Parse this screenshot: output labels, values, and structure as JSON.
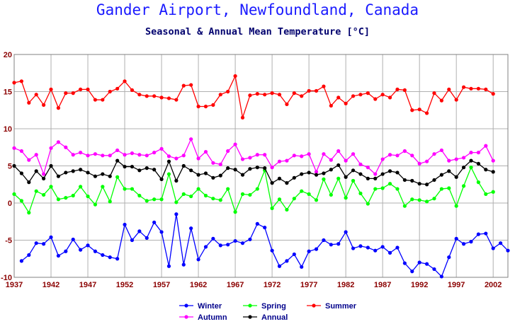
{
  "title": "Gander Airport, Newfoundland, Canada",
  "subtitle": "Seasonal & Annual Mean Temperature [°C]",
  "chart_data": {
    "type": "line",
    "title": "Gander Airport, Newfoundland, Canada",
    "subtitle": "Seasonal & Annual Mean Temperature [°C]",
    "xlabel": "",
    "ylabel": "",
    "xlim": [
      1937,
      2004
    ],
    "ylim": [
      -10,
      20
    ],
    "y_ticks": [
      -10,
      -5,
      0,
      5,
      10,
      15,
      20
    ],
    "x_ticks": [
      1937,
      1942,
      1947,
      1952,
      1957,
      1962,
      1967,
      1972,
      1977,
      1982,
      1987,
      1992,
      1997,
      2002
    ],
    "grid": true,
    "legend_position": "bottom-center",
    "x_start": 1937,
    "series": [
      {
        "name": "Winter",
        "color": "#0000ff",
        "start_year": 1938,
        "values": [
          -7.8,
          -7.0,
          -5.4,
          -5.5,
          -4.6,
          -7.1,
          -6.5,
          -4.9,
          -6.3,
          -5.7,
          -6.5,
          -7.0,
          -7.3,
          -7.5,
          -2.9,
          -5.0,
          -3.8,
          -4.7,
          -2.6,
          -3.9,
          -8.5,
          -1.5,
          -8.3,
          -3.4,
          -7.6,
          -5.9,
          -4.8,
          -5.7,
          -5.6,
          -5.1,
          -5.4,
          -4.9,
          -2.8,
          -3.3,
          -6.4,
          -8.5,
          -7.8,
          -6.9,
          -8.6,
          -6.5,
          -6.2,
          -5.0,
          -5.6,
          -5.5,
          -3.9,
          -6.1,
          -5.8,
          -6.0,
          -6.4,
          -5.9,
          -6.7,
          -6.0,
          -8.1,
          -9.2,
          -8.0,
          -8.2,
          -8.9,
          -9.9,
          -7.3,
          -4.8,
          -5.5,
          -5.2,
          -4.2,
          -4.1,
          -6.1,
          -5.4,
          -6.4
        ]
      },
      {
        "name": "Spring",
        "color": "#00ff00",
        "start_year": 1937,
        "values": [
          1.2,
          0.3,
          -1.3,
          1.6,
          1.1,
          2.2,
          0.5,
          0.7,
          1.0,
          2.2,
          0.9,
          -0.2,
          2.2,
          0.2,
          3.5,
          1.9,
          1.9,
          1.0,
          0.3,
          0.5,
          0.5,
          3.9,
          0.1,
          1.2,
          0.9,
          1.9,
          1.0,
          0.6,
          0.4,
          1.9,
          -1.2,
          1.2,
          1.1,
          1.9,
          4.4,
          -0.7,
          0.5,
          -0.9,
          0.6,
          1.6,
          1.2,
          0.4,
          3.2,
          1.1,
          3.3,
          0.7,
          3.0,
          1.3,
          -0.1,
          1.9,
          2.0,
          2.6,
          1.9,
          -0.4,
          0.5,
          0.4,
          0.2,
          0.6,
          1.9,
          2.0,
          -0.4,
          2.3,
          4.8,
          2.8,
          1.2,
          1.5
        ]
      },
      {
        "name": "Summer",
        "color": "#ff0000",
        "start_year": 1937,
        "values": [
          16.2,
          16.4,
          13.5,
          14.6,
          13.2,
          15.3,
          12.8,
          14.8,
          14.8,
          15.3,
          15.3,
          13.9,
          13.9,
          15.0,
          15.4,
          16.4,
          15.2,
          14.6,
          14.4,
          14.4,
          14.2,
          14.1,
          13.9,
          15.8,
          15.9,
          13.0,
          13.0,
          13.2,
          14.6,
          15.0,
          17.1,
          11.5,
          14.5,
          14.7,
          14.6,
          14.8,
          14.6,
          13.3,
          14.8,
          14.4,
          15.1,
          15.1,
          15.7,
          13.1,
          14.2,
          13.4,
          14.4,
          14.6,
          14.8,
          14.0,
          14.6,
          14.2,
          15.3,
          15.2,
          12.5,
          12.6,
          12.1,
          14.8,
          13.8,
          15.3,
          13.9,
          15.6,
          15.4,
          15.4,
          15.3,
          14.7
        ]
      },
      {
        "name": "Autumn",
        "color": "#ff00ff",
        "start_year": 1937,
        "values": [
          7.4,
          7.0,
          5.8,
          6.5,
          3.9,
          7.4,
          8.2,
          7.5,
          6.5,
          6.8,
          6.4,
          6.6,
          6.4,
          6.4,
          7.1,
          6.5,
          6.7,
          6.5,
          6.4,
          6.8,
          7.3,
          6.3,
          6.0,
          6.4,
          8.6,
          6.0,
          6.9,
          5.4,
          5.2,
          7.0,
          7.9,
          5.9,
          6.1,
          6.5,
          6.5,
          4.8,
          5.6,
          5.7,
          6.4,
          6.3,
          6.6,
          4.2,
          6.6,
          5.8,
          7.0,
          5.7,
          6.6,
          5.2,
          4.8,
          3.9,
          5.9,
          6.5,
          6.4,
          7.0,
          6.4,
          5.3,
          5.6,
          6.6,
          7.1,
          5.7,
          5.9,
          6.1,
          6.8,
          6.8,
          7.7,
          5.7
        ]
      },
      {
        "name": "Annual",
        "color": "#000000",
        "start_year": 1937,
        "values": [
          5.0,
          4.0,
          2.8,
          4.3,
          3.3,
          5.0,
          3.6,
          4.1,
          4.3,
          4.5,
          4.1,
          3.6,
          3.9,
          3.6,
          5.7,
          4.9,
          4.9,
          4.4,
          4.7,
          4.5,
          3.2,
          5.6,
          3.0,
          5.0,
          4.4,
          3.8,
          4.0,
          3.4,
          3.7,
          4.7,
          4.5,
          3.8,
          4.6,
          4.8,
          4.7,
          2.7,
          3.3,
          2.7,
          3.4,
          3.9,
          4.1,
          3.8,
          4.0,
          4.5,
          5.1,
          3.5,
          4.4,
          3.9,
          3.3,
          3.3,
          3.9,
          4.3,
          4.1,
          3.1,
          3.0,
          2.6,
          2.5,
          3.1,
          3.8,
          4.3,
          3.5,
          4.8,
          5.7,
          5.3,
          4.5,
          4.2
        ]
      }
    ]
  }
}
